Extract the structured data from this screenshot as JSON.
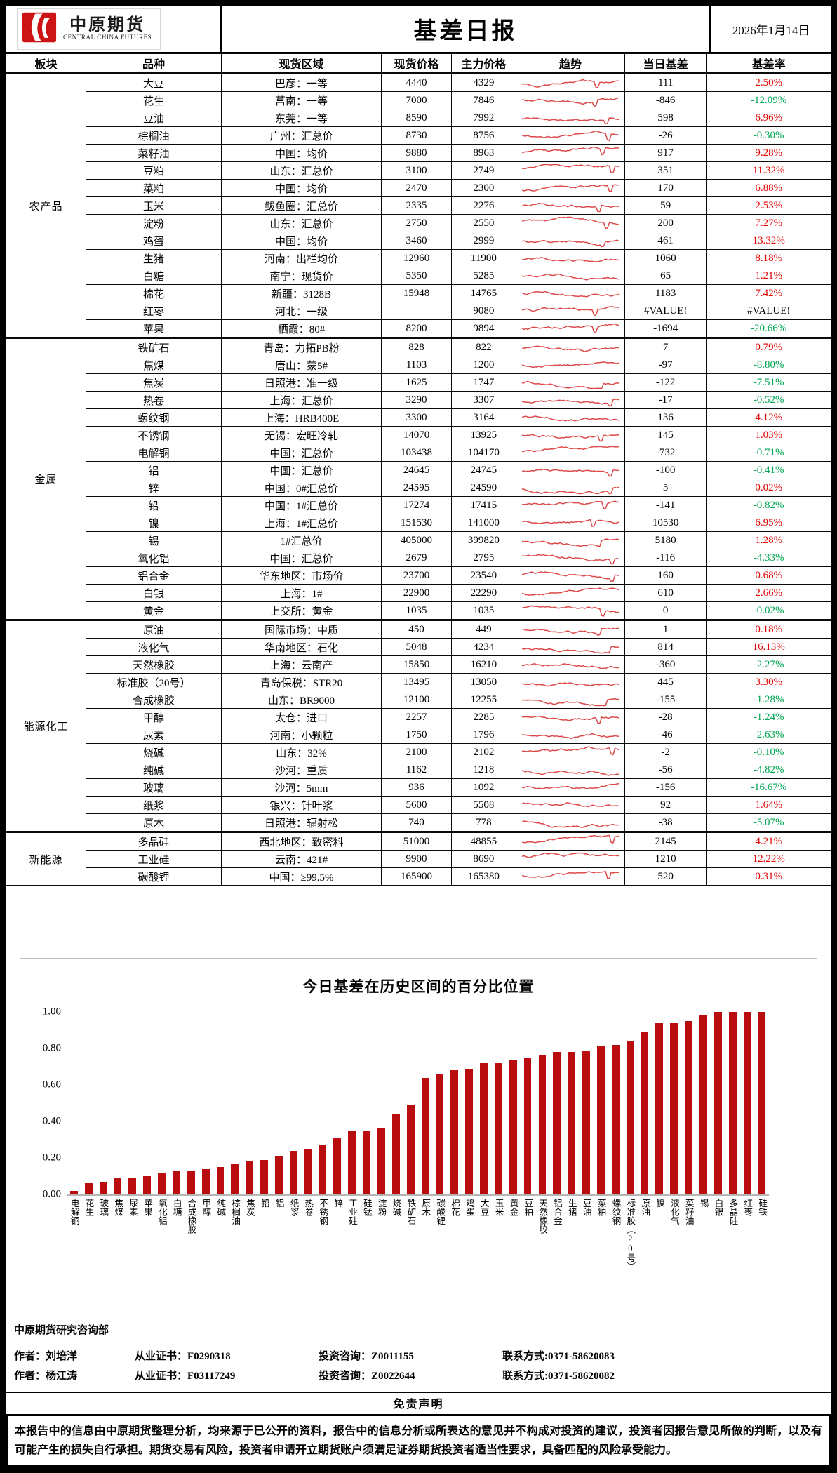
{
  "logo": {
    "cn": "中原期货",
    "en": "CENTRAL CHINA FUTURES"
  },
  "header": {
    "title": "基差日报",
    "date": "2026年1月14日"
  },
  "table": {
    "columns": [
      "板块",
      "品种",
      "现货区域",
      "现货价格",
      "主力价格",
      "趋势",
      "当日基差",
      "基差率"
    ],
    "sections": [
      {
        "name": "农产品",
        "rows": [
          {
            "v": "大豆",
            "r": "巴彦：一等",
            "s": "4440",
            "m": "4329",
            "b": "111",
            "p": "2.50%",
            "c": "pos"
          },
          {
            "v": "花生",
            "r": "莒南：一等",
            "s": "7000",
            "m": "7846",
            "b": "-846",
            "p": "-12.09%",
            "c": "neg"
          },
          {
            "v": "豆油",
            "r": "东莞：一等",
            "s": "8590",
            "m": "7992",
            "b": "598",
            "p": "6.96%",
            "c": "pos"
          },
          {
            "v": "棕榈油",
            "r": "广州：汇总价",
            "s": "8730",
            "m": "8756",
            "b": "-26",
            "p": "-0.30%",
            "c": "neg"
          },
          {
            "v": "菜籽油",
            "r": "中国：均价",
            "s": "9880",
            "m": "8963",
            "b": "917",
            "p": "9.28%",
            "c": "pos"
          },
          {
            "v": "豆粕",
            "r": "山东：汇总价",
            "s": "3100",
            "m": "2749",
            "b": "351",
            "p": "11.32%",
            "c": "pos"
          },
          {
            "v": "菜粕",
            "r": "中国：均价",
            "s": "2470",
            "m": "2300",
            "b": "170",
            "p": "6.88%",
            "c": "pos"
          },
          {
            "v": "玉米",
            "r": "鲅鱼圈：汇总价",
            "s": "2335",
            "m": "2276",
            "b": "59",
            "p": "2.53%",
            "c": "pos"
          },
          {
            "v": "淀粉",
            "r": "山东：汇总价",
            "s": "2750",
            "m": "2550",
            "b": "200",
            "p": "7.27%",
            "c": "pos"
          },
          {
            "v": "鸡蛋",
            "r": "中国：均价",
            "s": "3460",
            "m": "2999",
            "b": "461",
            "p": "13.32%",
            "c": "pos"
          },
          {
            "v": "生猪",
            "r": "河南：出栏均价",
            "s": "12960",
            "m": "11900",
            "b": "1060",
            "p": "8.18%",
            "c": "pos"
          },
          {
            "v": "白糖",
            "r": "南宁：现货价",
            "s": "5350",
            "m": "5285",
            "b": "65",
            "p": "1.21%",
            "c": "pos"
          },
          {
            "v": "棉花",
            "r": "新疆：3128B",
            "s": "15948",
            "m": "14765",
            "b": "1183",
            "p": "7.42%",
            "c": "pos"
          },
          {
            "v": "红枣",
            "r": "河北：一级",
            "s": "",
            "m": "9080",
            "b": "#VALUE!",
            "p": "#VALUE!",
            "c": "err"
          },
          {
            "v": "苹果",
            "r": "栖霞：80#",
            "s": "8200",
            "m": "9894",
            "b": "-1694",
            "p": "-20.66%",
            "c": "neg"
          }
        ]
      },
      {
        "name": "金属",
        "rows": [
          {
            "v": "铁矿石",
            "r": "青岛：力拓PB粉",
            "s": "828",
            "m": "822",
            "b": "7",
            "p": "0.79%",
            "c": "pos"
          },
          {
            "v": "焦煤",
            "r": "唐山：蒙5#",
            "s": "1103",
            "m": "1200",
            "b": "-97",
            "p": "-8.80%",
            "c": "neg"
          },
          {
            "v": "焦炭",
            "r": "日照港：准一级",
            "s": "1625",
            "m": "1747",
            "b": "-122",
            "p": "-7.51%",
            "c": "neg"
          },
          {
            "v": "热卷",
            "r": "上海：汇总价",
            "s": "3290",
            "m": "3307",
            "b": "-17",
            "p": "-0.52%",
            "c": "neg"
          },
          {
            "v": "螺纹钢",
            "r": "上海：HRB400E",
            "s": "3300",
            "m": "3164",
            "b": "136",
            "p": "4.12%",
            "c": "pos"
          },
          {
            "v": "不锈钢",
            "r": "无锡：宏旺冷轧",
            "s": "14070",
            "m": "13925",
            "b": "145",
            "p": "1.03%",
            "c": "pos"
          },
          {
            "v": "电解铜",
            "r": "中国：汇总价",
            "s": "103438",
            "m": "104170",
            "b": "-732",
            "p": "-0.71%",
            "c": "neg"
          },
          {
            "v": "铝",
            "r": "中国：汇总价",
            "s": "24645",
            "m": "24745",
            "b": "-100",
            "p": "-0.41%",
            "c": "neg"
          },
          {
            "v": "锌",
            "r": "中国：0#汇总价",
            "s": "24595",
            "m": "24590",
            "b": "5",
            "p": "0.02%",
            "c": "pos"
          },
          {
            "v": "铅",
            "r": "中国：1#汇总价",
            "s": "17274",
            "m": "17415",
            "b": "-141",
            "p": "-0.82%",
            "c": "neg"
          },
          {
            "v": "镍",
            "r": "上海：1#汇总价",
            "s": "151530",
            "m": "141000",
            "b": "10530",
            "p": "6.95%",
            "c": "pos"
          },
          {
            "v": "锡",
            "r": "1#汇总价",
            "s": "405000",
            "m": "399820",
            "b": "5180",
            "p": "1.28%",
            "c": "pos"
          },
          {
            "v": "氧化铝",
            "r": "中国：汇总价",
            "s": "2679",
            "m": "2795",
            "b": "-116",
            "p": "-4.33%",
            "c": "neg"
          },
          {
            "v": "铝合金",
            "r": "华东地区：市场价",
            "s": "23700",
            "m": "23540",
            "b": "160",
            "p": "0.68%",
            "c": "pos"
          },
          {
            "v": "白银",
            "r": "上海：1#",
            "s": "22900",
            "m": "22290",
            "b": "610",
            "p": "2.66%",
            "c": "pos"
          },
          {
            "v": "黄金",
            "r": "上交所：黄金",
            "s": "1035",
            "m": "1035",
            "b": "0",
            "p": "-0.02%",
            "c": "neg"
          }
        ]
      },
      {
        "name": "能源化工",
        "rows": [
          {
            "v": "原油",
            "r": "国际市场：中质",
            "s": "450",
            "m": "449",
            "b": "1",
            "p": "0.18%",
            "c": "pos"
          },
          {
            "v": "液化气",
            "r": "华南地区：石化",
            "s": "5048",
            "m": "4234",
            "b": "814",
            "p": "16.13%",
            "c": "pos"
          },
          {
            "v": "天然橡胶",
            "r": "上海：云南产",
            "s": "15850",
            "m": "16210",
            "b": "-360",
            "p": "-2.27%",
            "c": "neg"
          },
          {
            "v": "标准胶（20号）",
            "r": "青岛保税：STR20",
            "s": "13495",
            "m": "13050",
            "b": "445",
            "p": "3.30%",
            "c": "pos"
          },
          {
            "v": "合成橡胶",
            "r": "山东：BR9000",
            "s": "12100",
            "m": "12255",
            "b": "-155",
            "p": "-1.28%",
            "c": "neg"
          },
          {
            "v": "甲醇",
            "r": "太仓：进口",
            "s": "2257",
            "m": "2285",
            "b": "-28",
            "p": "-1.24%",
            "c": "neg"
          },
          {
            "v": "尿素",
            "r": "河南：小颗粒",
            "s": "1750",
            "m": "1796",
            "b": "-46",
            "p": "-2.63%",
            "c": "neg"
          },
          {
            "v": "烧碱",
            "r": "山东：32%",
            "s": "2100",
            "m": "2102",
            "b": "-2",
            "p": "-0.10%",
            "c": "neg"
          },
          {
            "v": "纯碱",
            "r": "沙河：重质",
            "s": "1162",
            "m": "1218",
            "b": "-56",
            "p": "-4.82%",
            "c": "neg"
          },
          {
            "v": "玻璃",
            "r": "沙河：5mm",
            "s": "936",
            "m": "1092",
            "b": "-156",
            "p": "-16.67%",
            "c": "neg"
          },
          {
            "v": "纸浆",
            "r": "银兴：针叶浆",
            "s": "5600",
            "m": "5508",
            "b": "92",
            "p": "1.64%",
            "c": "pos"
          },
          {
            "v": "原木",
            "r": "日照港：辐射松",
            "s": "740",
            "m": "778",
            "b": "-38",
            "p": "-5.07%",
            "c": "neg"
          }
        ]
      },
      {
        "name": "新能源",
        "rows": [
          {
            "v": "多晶硅",
            "r": "西北地区：致密料",
            "s": "51000",
            "m": "48855",
            "b": "2145",
            "p": "4.21%",
            "c": "pos"
          },
          {
            "v": "工业硅",
            "r": "云南：421#",
            "s": "9900",
            "m": "8690",
            "b": "1210",
            "p": "12.22%",
            "c": "pos"
          },
          {
            "v": "碳酸锂",
            "r": "中国：≥99.5%",
            "s": "165900",
            "m": "165380",
            "b": "520",
            "p": "0.31%",
            "c": "pos"
          }
        ]
      }
    ]
  },
  "chart_data": {
    "type": "bar",
    "title": "今日基差在历史区间的百分比位置",
    "categories": [
      "电解铜",
      "花生",
      "玻璃",
      "焦煤",
      "尿素",
      "苹果",
      "氧化铝",
      "白糖",
      "合成橡胶",
      "甲醇",
      "纯碱",
      "棕榈油",
      "焦炭",
      "铅",
      "铝",
      "纸浆",
      "热卷",
      "不锈钢",
      "锌",
      "工业硅",
      "硅锰",
      "淀粉",
      "烧碱",
      "铁矿石",
      "原木",
      "碳酸锂",
      "棉花",
      "鸡蛋",
      "大豆",
      "玉米",
      "黄金",
      "豆粕",
      "天然橡胶",
      "铝合金",
      "生猪",
      "豆油",
      "菜粕",
      "螺纹钢",
      "标准胶（20号）",
      "原油",
      "镍",
      "液化气",
      "菜籽油",
      "锡",
      "白银",
      "多晶硅",
      "红枣",
      "硅铁"
    ],
    "values": [
      0.02,
      0.06,
      0.07,
      0.09,
      0.09,
      0.1,
      0.12,
      0.13,
      0.13,
      0.14,
      0.15,
      0.17,
      0.18,
      0.19,
      0.21,
      0.24,
      0.25,
      0.27,
      0.31,
      0.35,
      0.35,
      0.36,
      0.44,
      0.49,
      0.64,
      0.66,
      0.68,
      0.69,
      0.72,
      0.72,
      0.74,
      0.75,
      0.76,
      0.78,
      0.78,
      0.79,
      0.81,
      0.82,
      0.84,
      0.89,
      0.94,
      0.94,
      0.95,
      0.98,
      1.0,
      1.0,
      1.0,
      1.0
    ],
    "y_ticks": [
      "1.00",
      "0.80",
      "0.60",
      "0.40",
      "0.20",
      "0.00"
    ],
    "ylim": [
      0,
      1
    ],
    "xlabel": "",
    "ylabel": "",
    "grid": false,
    "legend": "none",
    "bar_color": "#b90d10"
  },
  "footer": {
    "dept": "中原期货研究咨询部",
    "authors": [
      {
        "author": "作者：刘培洋",
        "cert": "从业证书：F0290318",
        "advisory": "投资咨询：Z0011155",
        "contact": "联系方式:0371-58620083"
      },
      {
        "author": "作者：杨江涛",
        "cert": "从业证书：F03117249",
        "advisory": "投资咨询：Z0022644",
        "contact": "联系方式:0371-58620082"
      }
    ],
    "disclaimer_title": "免责声明",
    "disclaimer": "本报告中的信息由中原期货整理分析，均来源于已公开的资料，报告中的信息分析或所表达的意见并不构成对投资的建议，投资者因报告意见所做的判断，以及有可能产生的损失自行承担。期货交易有风险，投资者申请开立期货账户须满足证券期货投资者适当性要求，具备匹配的风险承受能力。"
  },
  "colors": {
    "positive_rate": "#e60000",
    "negative_rate": "#00a651",
    "error_value": "#000000",
    "sparkline": "#dd4a4a",
    "bar": "#b90d10",
    "logo_red": "#cc1417"
  }
}
